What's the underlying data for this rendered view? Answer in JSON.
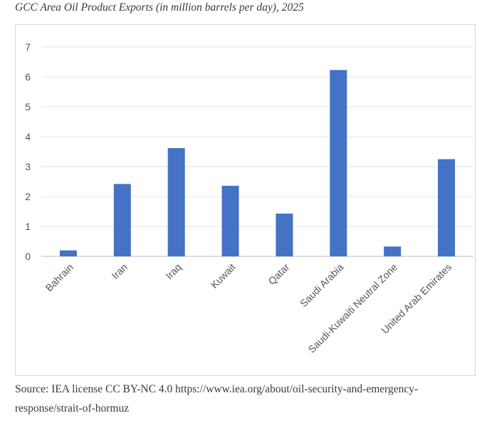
{
  "title": "GCC Area Oil Product Exports (in million barrels per day), 2025",
  "source": "Source: IEA license CC BY-NC 4.0 https://www.iea.org/about/oil-security-and-emergency-response/strait-of-hormuz",
  "chart_data": {
    "type": "bar",
    "categories": [
      "Bahrain",
      "Iran",
      "Iraq",
      "Kuwait",
      "Qatar",
      "Saudi Arabia",
      "Saudi-Kuwaiti Neutral Zone",
      "United Arab Emirates"
    ],
    "values": [
      0.2,
      2.42,
      3.62,
      2.36,
      1.43,
      6.23,
      0.33,
      3.25
    ],
    "yticks": [
      0,
      1,
      2,
      3,
      4,
      5,
      6,
      7
    ],
    "ylim": [
      0,
      7
    ],
    "xlabel": "",
    "ylabel": "",
    "grid": true,
    "legend": "none",
    "bar_color": "#4472c4"
  }
}
